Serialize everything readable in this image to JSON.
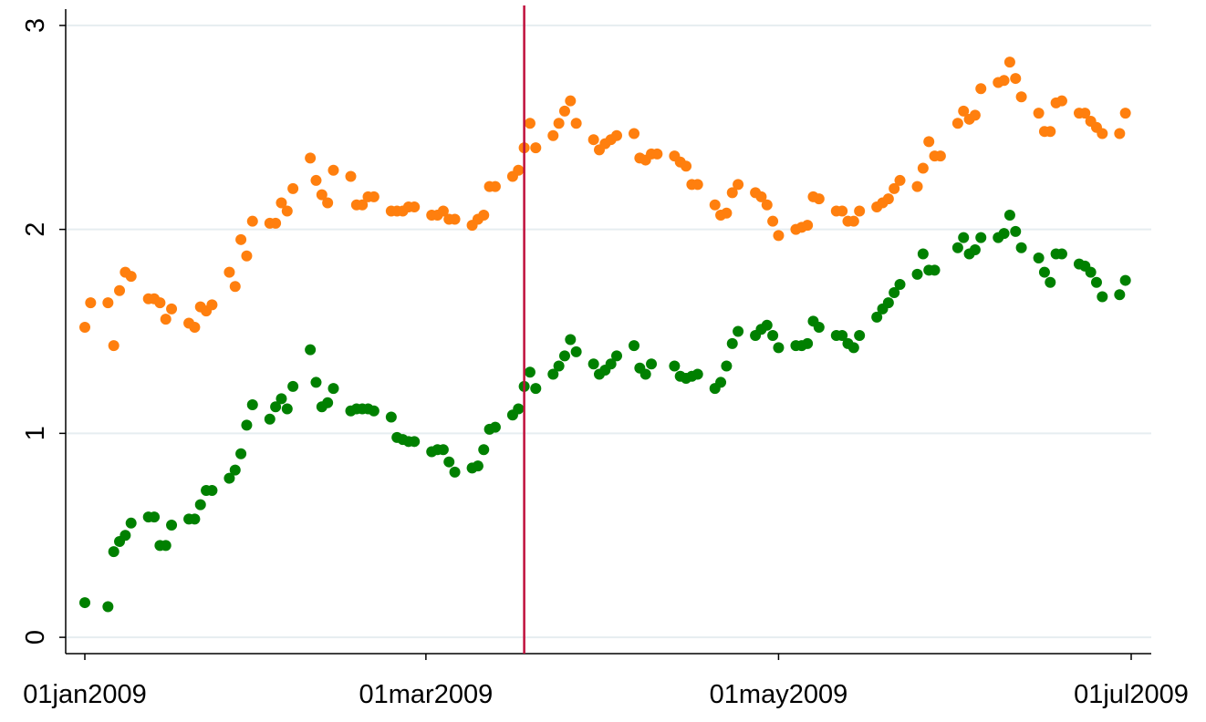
{
  "chart_data": {
    "type": "scatter",
    "x": [
      "01jan2009",
      "02jan2009",
      "05jan2009",
      "06jan2009",
      "07jan2009",
      "08jan2009",
      "09jan2009",
      "12jan2009",
      "13jan2009",
      "14jan2009",
      "15jan2009",
      "16jan2009",
      "19jan2009",
      "20jan2009",
      "21jan2009",
      "22jan2009",
      "23jan2009",
      "26jan2009",
      "27jan2009",
      "28jan2009",
      "29jan2009",
      "30jan2009",
      "02feb2009",
      "03feb2009",
      "04feb2009",
      "05feb2009",
      "06feb2009",
      "09feb2009",
      "10feb2009",
      "11feb2009",
      "12feb2009",
      "13feb2009",
      "16feb2009",
      "17feb2009",
      "18feb2009",
      "19feb2009",
      "20feb2009",
      "23feb2009",
      "24feb2009",
      "25feb2009",
      "26feb2009",
      "27feb2009",
      "02mar2009",
      "03mar2009",
      "04mar2009",
      "05mar2009",
      "06mar2009",
      "09mar2009",
      "10mar2009",
      "11mar2009",
      "12mar2009",
      "13mar2009",
      "16mar2009",
      "17mar2009",
      "18mar2009",
      "19mar2009",
      "20mar2009",
      "23mar2009",
      "24mar2009",
      "25mar2009",
      "26mar2009",
      "27mar2009",
      "30mar2009",
      "31mar2009",
      "01apr2009",
      "02apr2009",
      "03apr2009",
      "06apr2009",
      "07apr2009",
      "08apr2009",
      "09apr2009",
      "10apr2009",
      "13apr2009",
      "14apr2009",
      "15apr2009",
      "16apr2009",
      "17apr2009",
      "20apr2009",
      "21apr2009",
      "22apr2009",
      "23apr2009",
      "24apr2009",
      "27apr2009",
      "28apr2009",
      "29apr2009",
      "30apr2009",
      "01may2009",
      "04may2009",
      "05may2009",
      "06may2009",
      "07may2009",
      "08may2009",
      "11may2009",
      "12may2009",
      "13may2009",
      "14may2009",
      "15may2009",
      "18may2009",
      "19may2009",
      "20may2009",
      "21may2009",
      "22may2009",
      "25may2009",
      "26may2009",
      "27may2009",
      "28may2009",
      "29may2009",
      "01jun2009",
      "02jun2009",
      "03jun2009",
      "04jun2009",
      "05jun2009",
      "08jun2009",
      "09jun2009",
      "10jun2009",
      "11jun2009",
      "12jun2009",
      "15jun2009",
      "16jun2009",
      "17jun2009",
      "18jun2009",
      "19jun2009",
      "22jun2009",
      "23jun2009",
      "24jun2009",
      "25jun2009",
      "26jun2009",
      "29jun2009",
      "30jun2009"
    ],
    "series": [
      {
        "color": "#ff7f0e",
        "values": [
          1.52,
          1.64,
          1.64,
          1.43,
          1.7,
          1.79,
          1.77,
          1.66,
          1.66,
          1.64,
          1.56,
          1.61,
          1.54,
          1.52,
          1.62,
          1.6,
          1.63,
          1.79,
          1.72,
          1.95,
          1.87,
          2.04,
          2.03,
          2.03,
          2.13,
          2.09,
          2.2,
          2.35,
          2.24,
          2.17,
          2.13,
          2.29,
          2.26,
          2.12,
          2.12,
          2.16,
          2.16,
          2.09,
          2.09,
          2.09,
          2.11,
          2.11,
          2.07,
          2.07,
          2.09,
          2.05,
          2.05,
          2.02,
          2.05,
          2.07,
          2.21,
          2.21,
          2.26,
          2.29,
          2.4,
          2.52,
          2.4,
          2.46,
          2.52,
          2.58,
          2.63,
          2.52,
          2.44,
          2.39,
          2.42,
          2.44,
          2.46,
          2.47,
          2.35,
          2.34,
          2.37,
          2.37,
          2.36,
          2.33,
          2.31,
          2.22,
          2.22,
          2.12,
          2.07,
          2.08,
          2.18,
          2.22,
          2.18,
          2.16,
          2.12,
          2.04,
          1.97,
          2.0,
          2.01,
          2.02,
          2.16,
          2.15,
          2.09,
          2.09,
          2.04,
          2.04,
          2.09,
          2.11,
          2.13,
          2.15,
          2.2,
          2.24,
          2.21,
          2.3,
          2.43,
          2.36,
          2.36,
          2.52,
          2.58,
          2.54,
          2.56,
          2.69,
          2.72,
          2.73,
          2.82,
          2.74,
          2.65,
          2.57,
          2.48,
          2.48,
          2.62,
          2.63,
          2.57,
          2.57,
          2.53,
          2.5,
          2.47,
          2.47,
          2.57
        ]
      },
      {
        "color": "#008000",
        "values": [
          0.17,
          null,
          0.15,
          0.42,
          0.47,
          0.5,
          0.56,
          0.59,
          0.59,
          0.45,
          0.45,
          0.55,
          0.58,
          0.58,
          0.65,
          0.72,
          0.72,
          0.78,
          0.82,
          0.9,
          1.04,
          1.14,
          1.07,
          1.13,
          1.17,
          1.12,
          1.23,
          1.41,
          1.25,
          1.13,
          1.15,
          1.22,
          1.11,
          1.12,
          1.12,
          1.12,
          1.11,
          1.08,
          0.98,
          0.97,
          0.96,
          0.96,
          0.91,
          0.92,
          0.92,
          0.86,
          0.81,
          0.83,
          0.84,
          0.92,
          1.02,
          1.03,
          1.09,
          1.12,
          1.23,
          1.3,
          1.22,
          1.29,
          1.33,
          1.38,
          1.46,
          1.4,
          1.34,
          1.29,
          1.31,
          1.34,
          1.38,
          1.43,
          1.32,
          1.29,
          1.34,
          null,
          1.33,
          1.28,
          1.27,
          1.28,
          1.29,
          1.22,
          1.25,
          1.33,
          1.44,
          1.5,
          1.48,
          1.51,
          1.53,
          1.48,
          1.42,
          1.43,
          1.43,
          1.44,
          1.55,
          1.52,
          1.48,
          1.48,
          1.44,
          1.42,
          1.48,
          1.57,
          1.61,
          1.64,
          1.69,
          1.73,
          1.78,
          1.88,
          1.8,
          1.8,
          null,
          1.91,
          1.96,
          1.88,
          1.9,
          1.96,
          1.96,
          1.98,
          2.07,
          1.99,
          1.91,
          1.86,
          1.79,
          1.74,
          1.88,
          1.88,
          1.83,
          1.82,
          1.79,
          1.74,
          1.67,
          1.68,
          1.75
        ]
      }
    ],
    "xticks": [
      "01jan2009",
      "01mar2009",
      "01may2009",
      "01jul2009"
    ],
    "ylim": [
      -0.08,
      3.08
    ],
    "yticks": [
      0,
      1,
      2,
      3
    ],
    "grid": true,
    "xline": "18mar2009",
    "xline_color": "#c0103c"
  }
}
